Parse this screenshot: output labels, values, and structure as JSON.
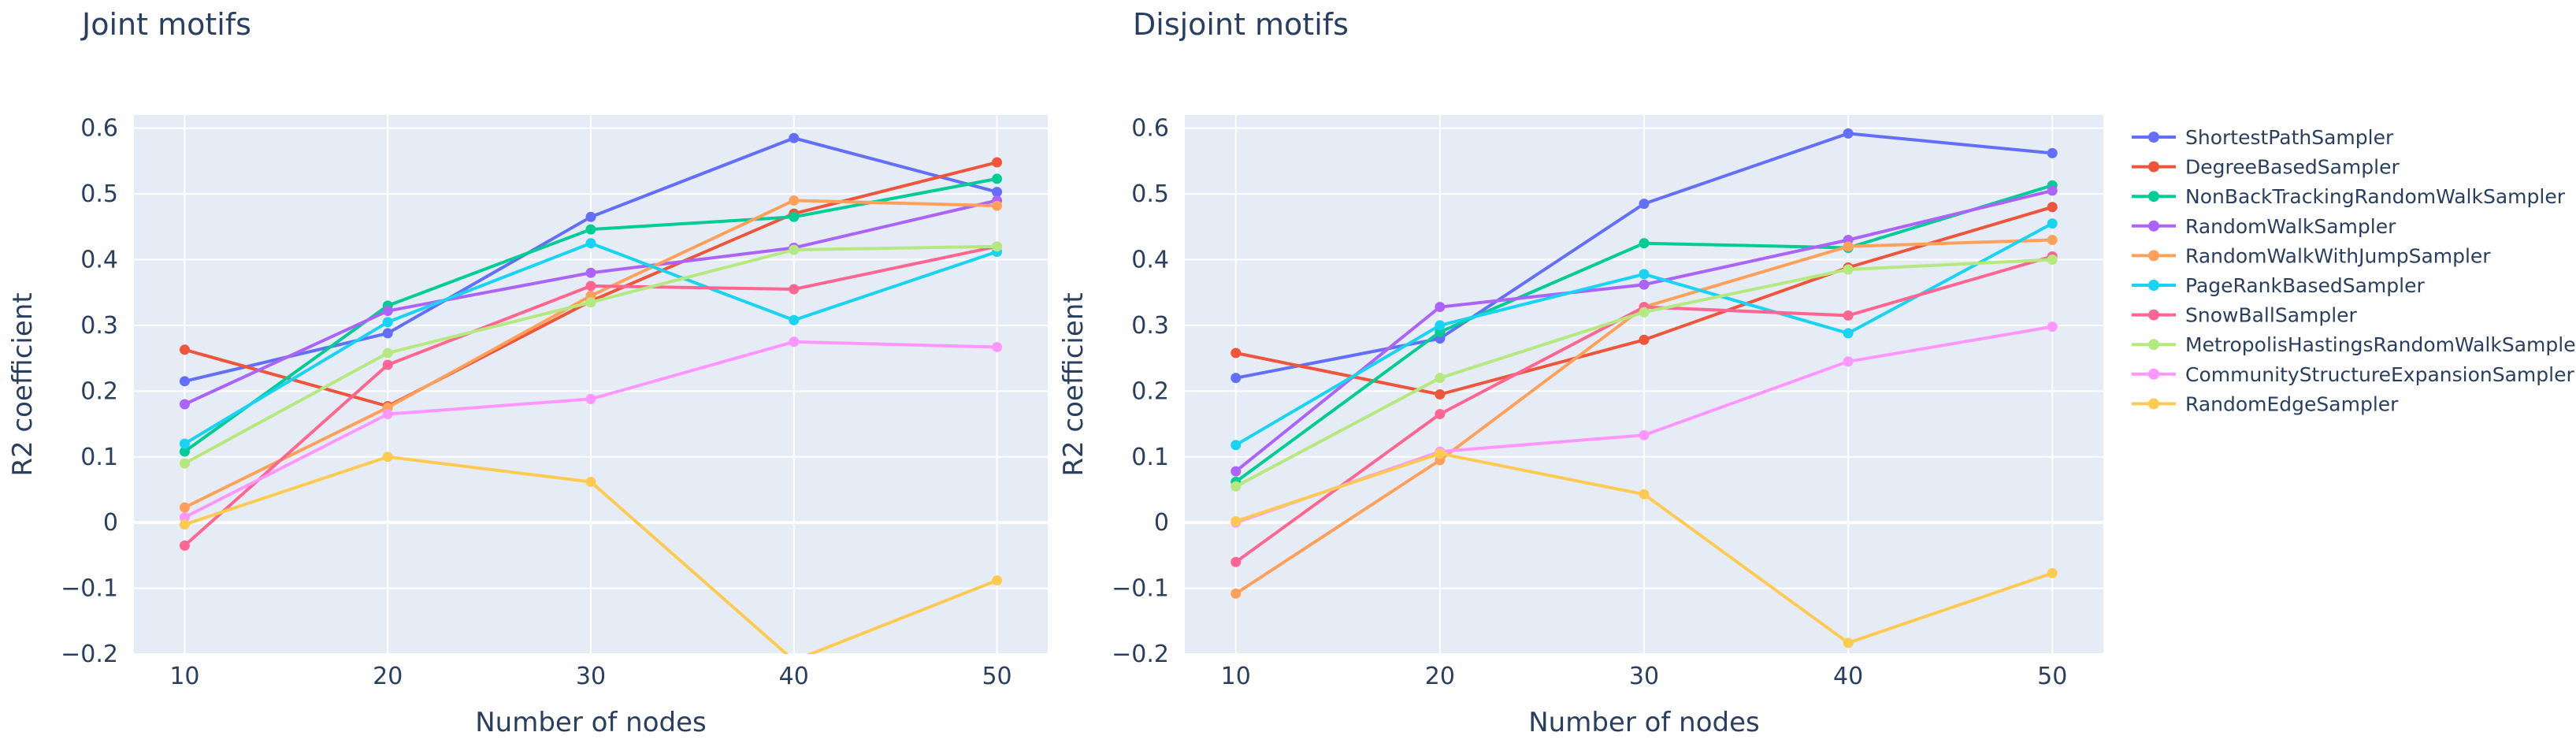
{
  "chart_data": [
    {
      "type": "line",
      "title": "Joint motifs",
      "xlabel": "Number of nodes",
      "ylabel": "R2 coefficient",
      "x": [
        10,
        20,
        30,
        40,
        50
      ],
      "xticks": [
        "10",
        "20",
        "30",
        "40",
        "50"
      ],
      "yticks": [
        "−0.2",
        "−0.1",
        "0",
        "0.1",
        "0.2",
        "0.3",
        "0.4",
        "0.5",
        "0.6"
      ],
      "xlim": [
        7.5,
        52.5
      ],
      "ylim": [
        -0.2,
        0.62
      ],
      "series": [
        {
          "name": "ShortestPathSampler",
          "color": "#636efa",
          "values": [
            0.215,
            0.288,
            0.465,
            0.585,
            0.503
          ]
        },
        {
          "name": "DegreeBasedSampler",
          "color": "#ef553b",
          "values": [
            0.263,
            0.177,
            0.337,
            0.47,
            0.548
          ]
        },
        {
          "name": "NonBackTrackingRandomWalkSampler",
          "color": "#00cc96",
          "values": [
            0.108,
            0.33,
            0.446,
            0.465,
            0.523
          ]
        },
        {
          "name": "RandomWalkSampler",
          "color": "#ab63fa",
          "values": [
            0.18,
            0.322,
            0.38,
            0.418,
            0.49
          ]
        },
        {
          "name": "RandomWalkWithJumpSampler",
          "color": "#ffa15a",
          "values": [
            0.023,
            0.175,
            0.345,
            0.49,
            0.482
          ]
        },
        {
          "name": "PageRankBasedSampler",
          "color": "#19d3f3",
          "values": [
            0.12,
            0.305,
            0.425,
            0.308,
            0.412
          ]
        },
        {
          "name": "SnowBallSampler",
          "color": "#ff6692",
          "values": [
            -0.035,
            0.24,
            0.36,
            0.355,
            0.42
          ]
        },
        {
          "name": "MetropolisHastingsRandomWalkSampler",
          "color": "#b6e880",
          "values": [
            0.09,
            0.258,
            0.335,
            0.415,
            0.42
          ]
        },
        {
          "name": "CommunityStructureExpansionSampler",
          "color": "#ff97ff",
          "values": [
            0.008,
            0.165,
            0.188,
            0.275,
            0.267
          ]
        },
        {
          "name": "RandomEdgeSampler",
          "color": "#fecb52",
          "values": [
            -0.003,
            0.1,
            0.062,
            -0.21,
            -0.088
          ]
        }
      ]
    },
    {
      "type": "line",
      "title": "Disjoint motifs",
      "xlabel": "Number of nodes",
      "ylabel": "R2 coefficient",
      "x": [
        10,
        20,
        30,
        40,
        50
      ],
      "xticks": [
        "10",
        "20",
        "30",
        "40",
        "50"
      ],
      "yticks": [
        "−0.2",
        "−0.1",
        "0",
        "0.1",
        "0.2",
        "0.3",
        "0.4",
        "0.5",
        "0.6"
      ],
      "xlim": [
        7.5,
        52.5
      ],
      "ylim": [
        -0.2,
        0.62
      ],
      "series": [
        {
          "name": "ShortestPathSampler",
          "color": "#636efa",
          "values": [
            0.22,
            0.28,
            0.485,
            0.592,
            0.562
          ]
        },
        {
          "name": "DegreeBasedSampler",
          "color": "#ef553b",
          "values": [
            0.258,
            0.195,
            0.278,
            0.388,
            0.48
          ]
        },
        {
          "name": "NonBackTrackingRandomWalkSampler",
          "color": "#00cc96",
          "values": [
            0.062,
            0.29,
            0.425,
            0.418,
            0.513
          ]
        },
        {
          "name": "RandomWalkSampler",
          "color": "#ab63fa",
          "values": [
            0.078,
            0.328,
            0.362,
            0.43,
            0.505
          ]
        },
        {
          "name": "RandomWalkWithJumpSampler",
          "color": "#ffa15a",
          "values": [
            -0.108,
            0.095,
            0.328,
            0.42,
            0.43
          ]
        },
        {
          "name": "PageRankBasedSampler",
          "color": "#19d3f3",
          "values": [
            0.118,
            0.3,
            0.378,
            0.288,
            0.455
          ]
        },
        {
          "name": "SnowBallSampler",
          "color": "#ff6692",
          "values": [
            -0.06,
            0.165,
            0.328,
            0.315,
            0.405
          ]
        },
        {
          "name": "MetropolisHastingsRandomWalkSampler",
          "color": "#b6e880",
          "values": [
            0.055,
            0.22,
            0.32,
            0.385,
            0.4
          ]
        },
        {
          "name": "CommunityStructureExpansionSampler",
          "color": "#ff97ff",
          "values": [
            0.0,
            0.108,
            0.133,
            0.245,
            0.298
          ]
        },
        {
          "name": "RandomEdgeSampler",
          "color": "#fecb52",
          "values": [
            0.002,
            0.105,
            0.043,
            -0.183,
            -0.077
          ]
        }
      ]
    }
  ],
  "legend": {
    "position": "right",
    "items": [
      {
        "name": "ShortestPathSampler",
        "color": "#636efa"
      },
      {
        "name": "DegreeBasedSampler",
        "color": "#ef553b"
      },
      {
        "name": "NonBackTrackingRandomWalkSampler",
        "color": "#00cc96"
      },
      {
        "name": "RandomWalkSampler",
        "color": "#ab63fa"
      },
      {
        "name": "RandomWalkWithJumpSampler",
        "color": "#ffa15a"
      },
      {
        "name": "PageRankBasedSampler",
        "color": "#19d3f3"
      },
      {
        "name": "SnowBallSampler",
        "color": "#ff6692"
      },
      {
        "name": "MetropolisHastingsRandomWalkSampler",
        "color": "#b6e880"
      },
      {
        "name": "CommunityStructureExpansionSampler",
        "color": "#ff97ff"
      },
      {
        "name": "RandomEdgeSampler",
        "color": "#fecb52"
      }
    ]
  }
}
